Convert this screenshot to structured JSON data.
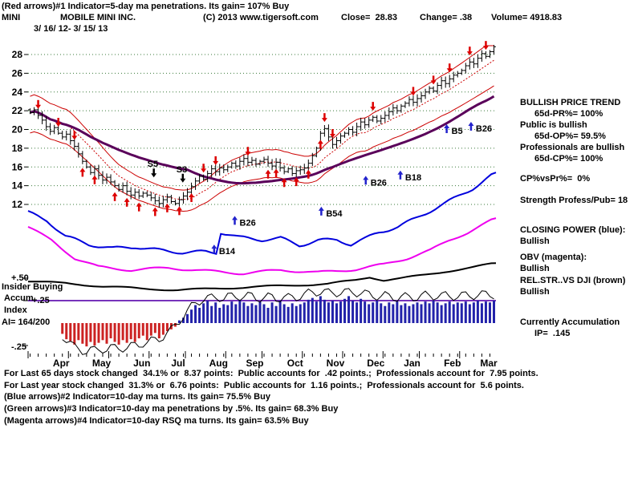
{
  "header": {
    "line1": "(Red arrows)#1 Indicator=5-day ma penetrations. Its gain= 107% Buy",
    "ticker": "MINI",
    "company": "MOBILE MINI INC.",
    "copyright": "(C) 2013 www.tigersoft.com",
    "close_label": "Close=  28.83",
    "change_label": "Change= .38",
    "volume_label": "Volume= 4918.83",
    "date_range": "3/ 16/ 12- 3/ 15/ 13"
  },
  "left_labels": {
    "plus50": "+.50",
    "insider": "Insider Buying",
    "accum": "Accum",
    "plus25": "+.25",
    "index": "Index",
    "ai": "AI= 164/200",
    "minus25": "-.25"
  },
  "right_panel": {
    "lines": [
      {
        "text": "BULLISH PRICE TREND",
        "indent": false
      },
      {
        "text": "65d-PR%= 100%",
        "indent": true
      },
      {
        "text": "Public is bullish",
        "indent": false
      },
      {
        "text": "65d-OP%= 59.5%",
        "indent": true
      },
      {
        "text": "Professionals are bullish",
        "indent": false
      },
      {
        "text": "65d-CP%= 100%",
        "indent": true
      },
      {
        "text": "CP%vsPr%=  0%",
        "indent": false
      },
      {
        "text": "Strength Profess/Pub= 18",
        "indent": false
      },
      {
        "text": "CLOSING POWER (blue):",
        "indent": false
      },
      {
        "text": "Bullish",
        "indent": false
      },
      {
        "text": "OBV (magenta):",
        "indent": false
      },
      {
        "text": "Bullish",
        "indent": false
      },
      {
        "text": "REL.STR..VS DJI (brown)",
        "indent": false
      },
      {
        "text": "Bullish",
        "indent": false
      },
      {
        "text": "Currently Accumulation",
        "indent": false
      },
      {
        "text": "IP=  .145",
        "indent": true
      }
    ]
  },
  "footer": {
    "lines": [
      "For Last 65 days stock changed  34.1% or  8.37 points:  Public accounts for  .42 points.;  Professionals account for  7.95 points.",
      "For Last year stock changed  31.3% or  6.76 points:  Public accounts for  1.16 points.;  Professionals account for  5.6 points.",
      "(Blue arrows)#2 Indicator=10-day ma turns. Its gain= 75.5% Buy",
      "(Green arrows)#3 Indicator=10-day ma penetrations by .5%. Its gain= 68.3% Buy",
      "(Magenta arrows)#4 Indicator=10-day RSQ ma turns. Its gain= 63.5% Buy"
    ]
  },
  "chart_data": {
    "type": "candlestick+indicators",
    "title": "MOBILE MINI INC. (MINI)  3/16/12 - 3/15/13",
    "last_close": 28.83,
    "change": 0.38,
    "volume": 4918.83,
    "y_ticks": [
      28,
      26,
      24,
      22,
      20,
      18,
      16,
      14,
      12
    ],
    "ylim": [
      10.5,
      29.5
    ],
    "grid": true,
    "x_months": [
      "Apr",
      "May",
      "Jun",
      "Jul",
      "Aug",
      "Sep",
      "Oct",
      "Nov",
      "Dec",
      "Jan",
      "Feb",
      "Mar"
    ],
    "month_start_idx": [
      0,
      10,
      20,
      30,
      39,
      49,
      58,
      68,
      78,
      88,
      97,
      107
    ],
    "close": [
      21.8,
      22.1,
      21.5,
      21.0,
      20.3,
      19.8,
      20.2,
      19.6,
      19.2,
      19.5,
      18.8,
      18.2,
      17.4,
      16.6,
      16.0,
      15.4,
      15.8,
      15.1,
      14.6,
      14.9,
      14.4,
      14.0,
      13.6,
      14.0,
      13.4,
      13.0,
      13.3,
      12.9,
      13.2,
      13.0,
      12.7,
      12.4,
      12.1,
      12.5,
      12.8,
      12.3,
      12.1,
      12.5,
      12.9,
      13.3,
      13.9,
      14.5,
      15.0,
      14.7,
      15.3,
      15.8,
      15.5,
      15.9,
      15.7,
      16.0,
      16.4,
      16.1,
      16.6,
      16.9,
      16.5,
      16.7,
      16.3,
      16.6,
      16.8,
      16.4,
      16.1,
      16.5,
      15.9,
      15.5,
      15.8,
      15.3,
      15.6,
      15.7,
      15.9,
      16.4,
      17.2,
      18.0,
      19.6,
      20.1,
      19.2,
      18.4,
      18.8,
      19.3,
      19.6,
      20.0,
      19.7,
      20.3,
      20.8,
      20.5,
      21.0,
      21.3,
      20.9,
      21.2,
      21.5,
      21.9,
      22.3,
      22.0,
      22.5,
      22.8,
      23.2,
      22.9,
      23.3,
      23.6,
      24.0,
      24.4,
      24.1,
      24.7,
      25.2,
      24.9,
      25.4,
      25.8,
      26.0,
      26.3,
      26.8,
      27.2,
      27.0,
      27.6,
      28.1,
      27.8,
      28.3,
      28.83
    ],
    "accum_scale_ticks": [
      0.5,
      0.25,
      -0.25
    ],
    "accum_index": [
      0,
      0,
      0,
      0,
      0,
      0,
      0,
      0,
      -0.12,
      -0.18,
      -0.2,
      -0.24,
      -0.19,
      -0.23,
      -0.26,
      -0.21,
      -0.25,
      -0.22,
      -0.19,
      -0.23,
      -0.17,
      -0.21,
      -0.24,
      -0.19,
      -0.22,
      -0.18,
      -0.21,
      -0.17,
      -0.14,
      -0.19,
      -0.14,
      -0.11,
      -0.17,
      -0.13,
      -0.09,
      -0.07,
      -0.04,
      0.03,
      0.06,
      0.1,
      0.15,
      0.2,
      0.17,
      0.22,
      0.25,
      0.19,
      0.23,
      0.17,
      0.21,
      0.2,
      0.24,
      0.21,
      0.26,
      0.23,
      0.19,
      0.22,
      0.2,
      0.24,
      0.21,
      0.17,
      0.23,
      0.19,
      0.25,
      0.21,
      0.18,
      0.22,
      0.19,
      0.21,
      0.23,
      0.26,
      0.28,
      0.24,
      0.3,
      0.26,
      0.23,
      0.25,
      0.22,
      0.24,
      0.27,
      0.3,
      0.25,
      0.23,
      0.27,
      0.24,
      0.21,
      0.23,
      0.25,
      0.22,
      0.19,
      0.23,
      0.21,
      0.24,
      0.2,
      0.22,
      0.19,
      0.21,
      0.23,
      0.21,
      0.24,
      0.22,
      0.25,
      0.23,
      0.2,
      0.22,
      0.24,
      0.21,
      0.23,
      0.22,
      0.24,
      0.21,
      0.23,
      0.25,
      0.22,
      0.24,
      0.23,
      0.25
    ],
    "closing_power": [
      [
        0,
        0.532
      ],
      [
        0.04,
        0.558
      ],
      [
        0.08,
        0.61
      ],
      [
        0.13,
        0.636
      ],
      [
        0.18,
        0.649
      ],
      [
        0.23,
        0.644
      ],
      [
        0.28,
        0.655
      ],
      [
        0.33,
        0.662
      ],
      [
        0.38,
        0.66
      ],
      [
        0.402,
        0.663
      ],
      [
        0.412,
        0.597
      ],
      [
        0.45,
        0.613
      ],
      [
        0.5,
        0.621
      ],
      [
        0.54,
        0.616
      ],
      [
        0.58,
        0.639
      ],
      [
        0.62,
        0.623
      ],
      [
        0.66,
        0.621
      ],
      [
        0.69,
        0.636
      ],
      [
        0.72,
        0.618
      ],
      [
        0.75,
        0.597
      ],
      [
        0.79,
        0.579
      ],
      [
        0.83,
        0.551
      ],
      [
        0.87,
        0.519
      ],
      [
        0.91,
        0.488
      ],
      [
        0.95,
        0.455
      ],
      [
        1.0,
        0.403
      ]
    ],
    "obv": [
      [
        0,
        0.579
      ],
      [
        0.05,
        0.623
      ],
      [
        0.1,
        0.681
      ],
      [
        0.15,
        0.709
      ],
      [
        0.22,
        0.719
      ],
      [
        0.3,
        0.712
      ],
      [
        0.38,
        0.722
      ],
      [
        0.46,
        0.73
      ],
      [
        0.54,
        0.719
      ],
      [
        0.62,
        0.727
      ],
      [
        0.7,
        0.717
      ],
      [
        0.76,
        0.701
      ],
      [
        0.81,
        0.681
      ],
      [
        0.86,
        0.655
      ],
      [
        0.9,
        0.623
      ],
      [
        0.94,
        0.597
      ],
      [
        1.0,
        0.551
      ]
    ],
    "rel_str": [
      [
        0,
        0.755
      ],
      [
        0.08,
        0.762
      ],
      [
        0.16,
        0.772
      ],
      [
        0.24,
        0.779
      ],
      [
        0.32,
        0.784
      ],
      [
        0.4,
        0.779
      ],
      [
        0.48,
        0.774
      ],
      [
        0.56,
        0.769
      ],
      [
        0.64,
        0.764
      ],
      [
        0.7,
        0.752
      ],
      [
        0.73,
        0.742
      ],
      [
        0.76,
        0.752
      ],
      [
        0.8,
        0.745
      ],
      [
        0.85,
        0.735
      ],
      [
        0.9,
        0.722
      ],
      [
        0.95,
        0.71
      ],
      [
        1.0,
        0.697
      ]
    ],
    "arrows_down": [
      2,
      7,
      11,
      43,
      46,
      54,
      73,
      75,
      85,
      95,
      100,
      104,
      109,
      113
    ],
    "arrows_up": [
      13,
      16,
      21,
      24,
      27,
      31,
      34,
      37,
      40,
      59,
      61,
      63,
      66,
      69,
      72
    ],
    "labels": [
      {
        "fx": 0.255,
        "fy": 0.385,
        "text": "S5",
        "dir": "dn"
      },
      {
        "fx": 0.317,
        "fy": 0.402,
        "text": "S3",
        "dir": "dn"
      },
      {
        "fx": 0.408,
        "fy": 0.668,
        "text": "B14",
        "dir": "up"
      },
      {
        "fx": 0.452,
        "fy": 0.575,
        "text": "B26",
        "dir": "up"
      },
      {
        "fx": 0.637,
        "fy": 0.545,
        "text": "B54",
        "dir": "up"
      },
      {
        "fx": 0.732,
        "fy": 0.445,
        "text": "B26",
        "dir": "up"
      },
      {
        "fx": 0.806,
        "fy": 0.428,
        "text": "B18",
        "dir": "up"
      },
      {
        "fx": 0.905,
        "fy": 0.278,
        "text": "B5",
        "dir": "up"
      },
      {
        "fx": 0.957,
        "fy": 0.27,
        "text": "B26",
        "dir": "up"
      }
    ],
    "colors": {
      "background": "#ffffff",
      "text": "#000000",
      "grid": "#3a7a3a",
      "band": "#cc0000",
      "trend": "#5a005a",
      "cp": "#0000dd",
      "obv": "#ee00ee",
      "rel_str": "#000000",
      "accum_pos": "#2222aa",
      "accum_neg": "#cc2222",
      "guide": "#7733bb",
      "signal_red": "#dd0000",
      "signal_blue": "#2222cc"
    },
    "legend_position": "right-panel-text"
  }
}
